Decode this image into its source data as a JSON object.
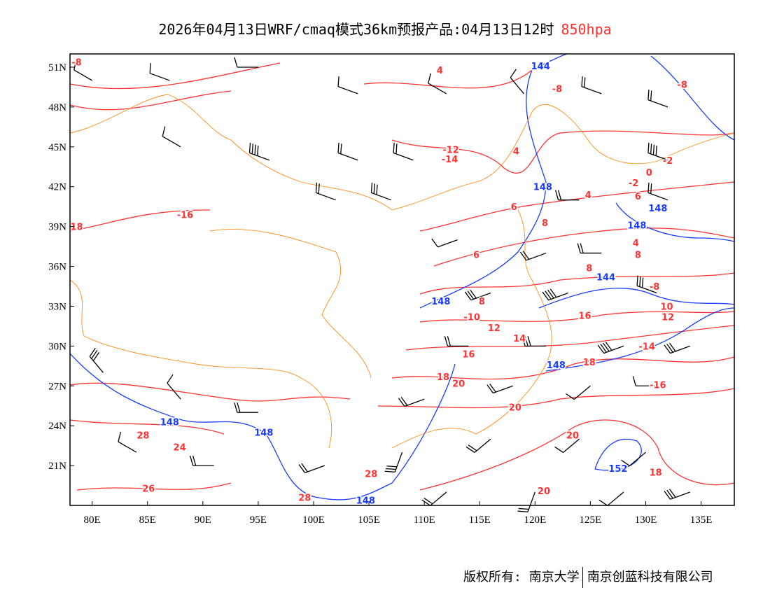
{
  "title": {
    "main": "2026年04月13日WRF/cmaq模式36km预报产品:04月13日12时",
    "level": "850hpa"
  },
  "footer": {
    "copyright": "版权所有: 南京大学",
    "company": "南京创蓝科技有限公司"
  },
  "colors": {
    "temperature": "#ff3333",
    "height": "#1a3cff",
    "boundary": "#ff8c1a",
    "wind": "#000000"
  },
  "map": {
    "lon_range": [
      78,
      138
    ],
    "lat_range": [
      18,
      52
    ],
    "lon_ticks": [
      {
        "v": 80,
        "label": "80E"
      },
      {
        "v": 85,
        "label": "85E"
      },
      {
        "v": 90,
        "label": "90E"
      },
      {
        "v": 95,
        "label": "95E"
      },
      {
        "v": 100,
        "label": "100E"
      },
      {
        "v": 105,
        "label": "105E"
      },
      {
        "v": 110,
        "label": "110E"
      },
      {
        "v": 115,
        "label": "115E"
      },
      {
        "v": 120,
        "label": "120E"
      },
      {
        "v": 125,
        "label": "125E"
      },
      {
        "v": 130,
        "label": "130E"
      },
      {
        "v": 135,
        "label": "135E"
      }
    ],
    "lat_ticks": [
      {
        "v": 51,
        "label": "51N"
      },
      {
        "v": 48,
        "label": "48N"
      },
      {
        "v": 45,
        "label": "45N"
      },
      {
        "v": 42,
        "label": "42N"
      },
      {
        "v": 39,
        "label": "39N"
      },
      {
        "v": 36,
        "label": "36N"
      },
      {
        "v": 33,
        "label": "33N"
      },
      {
        "v": 30,
        "label": "30N"
      },
      {
        "v": 27,
        "label": "27N"
      },
      {
        "v": 24,
        "label": "24N"
      },
      {
        "v": 21,
        "label": "21N"
      }
    ],
    "contour_labels": [
      {
        "t": "-8",
        "k": "temp",
        "lon": 78.6,
        "lat": 51.4
      },
      {
        "t": "4",
        "k": "temp",
        "lon": 111.4,
        "lat": 50.8
      },
      {
        "t": "144",
        "k": "hgt",
        "lon": 120.5,
        "lat": 51.1
      },
      {
        "t": "-8",
        "k": "temp",
        "lon": 122.0,
        "lat": 49.4
      },
      {
        "t": "-8",
        "k": "temp",
        "lon": 133.3,
        "lat": 49.7
      },
      {
        "t": "-12",
        "k": "temp",
        "lon": 112.4,
        "lat": 44.8
      },
      {
        "t": "-14",
        "k": "temp",
        "lon": 112.3,
        "lat": 44.1
      },
      {
        "t": "4",
        "k": "temp",
        "lon": 118.3,
        "lat": 44.7
      },
      {
        "t": "0",
        "k": "temp",
        "lon": 130.3,
        "lat": 43.1
      },
      {
        "t": "-2",
        "k": "temp",
        "lon": 132.0,
        "lat": 44.0
      },
      {
        "t": "-2",
        "k": "temp",
        "lon": 128.9,
        "lat": 42.3
      },
      {
        "t": "148",
        "k": "hgt",
        "lon": 120.7,
        "lat": 42.0
      },
      {
        "t": "4",
        "k": "temp",
        "lon": 124.8,
        "lat": 41.4
      },
      {
        "t": "6",
        "k": "temp",
        "lon": 129.3,
        "lat": 41.3
      },
      {
        "t": "-16",
        "k": "temp",
        "lon": 88.4,
        "lat": 39.9
      },
      {
        "t": "18",
        "k": "temp",
        "lon": 78.6,
        "lat": 39.0
      },
      {
        "t": "6",
        "k": "temp",
        "lon": 118.1,
        "lat": 40.5
      },
      {
        "t": "148",
        "k": "hgt",
        "lon": 131.1,
        "lat": 40.4
      },
      {
        "t": "148",
        "k": "hgt",
        "lon": 129.2,
        "lat": 39.1
      },
      {
        "t": "8",
        "k": "temp",
        "lon": 120.9,
        "lat": 39.3
      },
      {
        "t": "4",
        "k": "temp",
        "lon": 129.1,
        "lat": 37.8
      },
      {
        "t": "8",
        "k": "temp",
        "lon": 129.3,
        "lat": 36.9
      },
      {
        "t": "6",
        "k": "temp",
        "lon": 114.7,
        "lat": 36.9
      },
      {
        "t": "8",
        "k": "temp",
        "lon": 124.9,
        "lat": 35.9
      },
      {
        "t": "144",
        "k": "hgt",
        "lon": 126.4,
        "lat": 35.2
      },
      {
        "t": "-8",
        "k": "temp",
        "lon": 130.8,
        "lat": 34.5
      },
      {
        "t": "148",
        "k": "hgt",
        "lon": 111.5,
        "lat": 33.4
      },
      {
        "t": "8",
        "k": "temp",
        "lon": 115.2,
        "lat": 33.4
      },
      {
        "t": "10",
        "k": "temp",
        "lon": 131.9,
        "lat": 33.0
      },
      {
        "t": "12",
        "k": "temp",
        "lon": 132.0,
        "lat": 32.2
      },
      {
        "t": "-10",
        "k": "temp",
        "lon": 114.3,
        "lat": 32.2
      },
      {
        "t": "16",
        "k": "temp",
        "lon": 124.5,
        "lat": 32.3
      },
      {
        "t": "12",
        "k": "temp",
        "lon": 116.3,
        "lat": 31.4
      },
      {
        "t": "14",
        "k": "temp",
        "lon": 118.6,
        "lat": 30.6
      },
      {
        "t": "16",
        "k": "temp",
        "lon": 114.0,
        "lat": 29.4
      },
      {
        "t": "-14",
        "k": "temp",
        "lon": 130.1,
        "lat": 30.0
      },
      {
        "t": "148",
        "k": "hgt",
        "lon": 121.9,
        "lat": 28.6
      },
      {
        "t": "18",
        "k": "temp",
        "lon": 124.9,
        "lat": 28.8
      },
      {
        "t": "18",
        "k": "temp",
        "lon": 111.7,
        "lat": 27.7
      },
      {
        "t": "20",
        "k": "temp",
        "lon": 113.1,
        "lat": 27.2
      },
      {
        "t": "-16",
        "k": "temp",
        "lon": 131.1,
        "lat": 27.1
      },
      {
        "t": "20",
        "k": "temp",
        "lon": 118.2,
        "lat": 25.4
      },
      {
        "t": "148",
        "k": "hgt",
        "lon": 87.0,
        "lat": 24.3
      },
      {
        "t": "148",
        "k": "hgt",
        "lon": 95.5,
        "lat": 23.5
      },
      {
        "t": "28",
        "k": "temp",
        "lon": 84.6,
        "lat": 23.3
      },
      {
        "t": "24",
        "k": "temp",
        "lon": 87.9,
        "lat": 22.4
      },
      {
        "t": "20",
        "k": "temp",
        "lon": 123.4,
        "lat": 23.3
      },
      {
        "t": "152",
        "k": "hgt",
        "lon": 127.5,
        "lat": 20.8
      },
      {
        "t": "18",
        "k": "temp",
        "lon": 130.9,
        "lat": 20.5
      },
      {
        "t": "28",
        "k": "temp",
        "lon": 105.2,
        "lat": 20.4
      },
      {
        "t": "26",
        "k": "temp",
        "lon": 85.1,
        "lat": 19.3
      },
      {
        "t": "28",
        "k": "temp",
        "lon": 99.2,
        "lat": 18.6
      },
      {
        "t": "148",
        "k": "hgt",
        "lon": 104.7,
        "lat": 18.4
      },
      {
        "t": "20",
        "k": "temp",
        "lon": 120.8,
        "lat": 19.1
      }
    ],
    "wind_barbs": [
      {
        "lon": 80,
        "lat": 50,
        "dir": 300,
        "spd": 10
      },
      {
        "lon": 87,
        "lat": 50,
        "dir": 290,
        "spd": 10
      },
      {
        "lon": 95,
        "lat": 51,
        "dir": 270,
        "spd": 10
      },
      {
        "lon": 104,
        "lat": 49,
        "dir": 290,
        "spd": 10
      },
      {
        "lon": 112,
        "lat": 49,
        "dir": 300,
        "spd": 10
      },
      {
        "lon": 119,
        "lat": 49,
        "dir": 320,
        "spd": 10
      },
      {
        "lon": 126,
        "lat": 49,
        "dir": 290,
        "spd": 20
      },
      {
        "lon": 132,
        "lat": 48,
        "dir": 290,
        "spd": 20
      },
      {
        "lon": 88,
        "lat": 45,
        "dir": 300,
        "spd": 10
      },
      {
        "lon": 96,
        "lat": 44,
        "dir": 290,
        "spd": 40
      },
      {
        "lon": 104,
        "lat": 44,
        "dir": 290,
        "spd": 20
      },
      {
        "lon": 109,
        "lat": 44,
        "dir": 290,
        "spd": 20
      },
      {
        "lon": 132,
        "lat": 44,
        "dir": 290,
        "spd": 40
      },
      {
        "lon": 102,
        "lat": 41,
        "dir": 290,
        "spd": 20
      },
      {
        "lon": 107,
        "lat": 41,
        "dir": 290,
        "spd": 30
      },
      {
        "lon": 124,
        "lat": 41,
        "dir": 270,
        "spd": 20
      },
      {
        "lon": 132,
        "lat": 41,
        "dir": 290,
        "spd": 20
      },
      {
        "lon": 113,
        "lat": 38,
        "dir": 250,
        "spd": 10
      },
      {
        "lon": 121,
        "lat": 37,
        "dir": 250,
        "spd": 20
      },
      {
        "lon": 126,
        "lat": 37,
        "dir": 270,
        "spd": 20
      },
      {
        "lon": 116,
        "lat": 34,
        "dir": 250,
        "spd": 30
      },
      {
        "lon": 123,
        "lat": 34,
        "dir": 250,
        "spd": 40
      },
      {
        "lon": 131,
        "lat": 34,
        "dir": 290,
        "spd": 30
      },
      {
        "lon": 114,
        "lat": 30,
        "dir": 270,
        "spd": 20
      },
      {
        "lon": 121,
        "lat": 30,
        "dir": 270,
        "spd": 30
      },
      {
        "lon": 128,
        "lat": 30,
        "dir": 250,
        "spd": 40
      },
      {
        "lon": 134,
        "lat": 30,
        "dir": 250,
        "spd": 30
      },
      {
        "lon": 81,
        "lat": 28,
        "dir": 320,
        "spd": 30
      },
      {
        "lon": 88,
        "lat": 26,
        "dir": 320,
        "spd": 10
      },
      {
        "lon": 95,
        "lat": 25,
        "dir": 270,
        "spd": 20
      },
      {
        "lon": 110,
        "lat": 26,
        "dir": 250,
        "spd": 20
      },
      {
        "lon": 118,
        "lat": 27,
        "dir": 250,
        "spd": 20
      },
      {
        "lon": 125,
        "lat": 27,
        "dir": 230,
        "spd": 10
      },
      {
        "lon": 131,
        "lat": 27,
        "dir": 270,
        "spd": 10
      },
      {
        "lon": 84,
        "lat": 22,
        "dir": 300,
        "spd": 10
      },
      {
        "lon": 91,
        "lat": 21,
        "dir": 270,
        "spd": 20
      },
      {
        "lon": 101,
        "lat": 21,
        "dir": 250,
        "spd": 20
      },
      {
        "lon": 108,
        "lat": 22,
        "dir": 200,
        "spd": 30
      },
      {
        "lon": 116,
        "lat": 23,
        "dir": 230,
        "spd": 20
      },
      {
        "lon": 124,
        "lat": 23,
        "dir": 230,
        "spd": 10
      },
      {
        "lon": 130,
        "lat": 22,
        "dir": 230,
        "spd": 10
      },
      {
        "lon": 112,
        "lat": 19,
        "dir": 230,
        "spd": 20
      },
      {
        "lon": 120,
        "lat": 19,
        "dir": 200,
        "spd": 20
      },
      {
        "lon": 128,
        "lat": 19,
        "dir": 230,
        "spd": 10
      },
      {
        "lon": 134,
        "lat": 19,
        "dir": 250,
        "spd": 30
      }
    ]
  }
}
